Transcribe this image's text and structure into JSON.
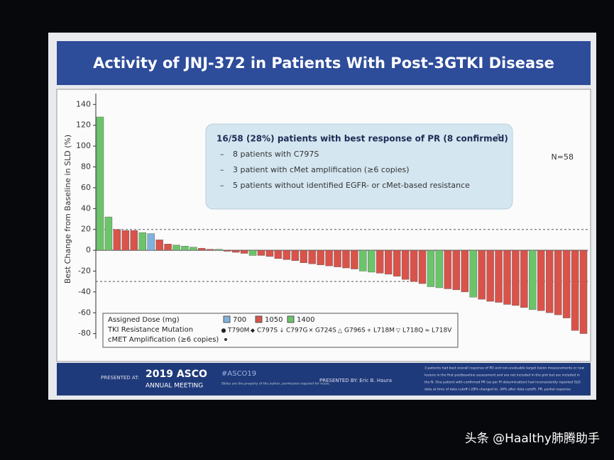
{
  "chart_data": {
    "type": "bar",
    "title": "Activity of JNJ-372 in Patients With Post-3GTKI Disease",
    "y_label": "Best Change from Baseline in SLD (%)",
    "ylim": [
      -85,
      145
    ],
    "yticks": [
      -80,
      -60,
      -40,
      -20,
      0,
      20,
      40,
      60,
      80,
      100,
      120,
      140
    ],
    "reference_lines": [
      20,
      -30
    ],
    "series": [
      {
        "name": "700",
        "color": "#7fb2dc",
        "values": [
          null,
          null,
          null,
          null,
          null,
          null,
          16,
          null,
          null,
          null,
          null,
          null,
          null,
          null,
          null,
          null,
          null,
          null,
          null,
          null,
          null,
          null,
          null,
          null,
          null,
          null,
          null,
          null,
          null,
          null,
          null,
          null,
          null,
          null,
          null,
          null,
          null,
          null,
          null,
          null,
          null,
          null,
          null,
          null,
          null,
          null,
          null,
          null,
          null,
          null,
          null,
          null,
          null,
          null,
          null,
          null,
          null,
          null
        ]
      },
      {
        "name": "1050",
        "color": "#d9534a",
        "values": [
          null,
          null,
          20,
          19,
          19,
          null,
          null,
          10,
          6,
          null,
          null,
          null,
          2,
          1,
          null,
          -1,
          -2,
          -3,
          null,
          -5,
          -6,
          -8,
          -9,
          -10,
          -12,
          -13,
          -14,
          -15,
          -16,
          -17,
          -18,
          null,
          null,
          -22,
          -23,
          -25,
          -28,
          -30,
          -32,
          null,
          null,
          -37,
          -38,
          -40,
          null,
          -47,
          -49,
          -50,
          -52,
          -53,
          -55,
          null,
          -58,
          -60,
          -62,
          -65,
          -77,
          -80
        ]
      },
      {
        "name": "1400",
        "color": "#6cc46a",
        "values": [
          128,
          32,
          null,
          null,
          null,
          17,
          null,
          null,
          null,
          5,
          4,
          3,
          null,
          null,
          1,
          null,
          null,
          null,
          -5,
          null,
          null,
          null,
          null,
          null,
          null,
          null,
          null,
          null,
          null,
          null,
          null,
          -20,
          -21,
          null,
          null,
          null,
          null,
          null,
          null,
          -35,
          -36,
          null,
          null,
          null,
          -45,
          null,
          null,
          null,
          null,
          null,
          null,
          -57,
          null,
          null,
          null,
          null,
          null,
          null
        ]
      }
    ],
    "n_label": "N=58",
    "callout": {
      "heading": "16/58 (28%) patients with best response of PR (8 confirmed)",
      "heading_sup": "a",
      "bullets": [
        "8 patients with C797S",
        "3 patient with cMet amplification (≥6 copies)",
        "5 patients without identified EGFR- or cMet-based resistance"
      ]
    },
    "legend": {
      "dose_title": "Assigned Dose (mg)",
      "mutation_title": "TKI Resistance Mutation",
      "amp_title": "cMET Amplification (≥6 copies)",
      "mutations": [
        "T790M",
        "C797S",
        "C797G",
        "G724S",
        "G796S",
        "L718M",
        "L718Q",
        "L718V"
      ]
    }
  },
  "footer": {
    "presented_at": "PRESENTED AT:",
    "meeting": "2019 ASCO",
    "meeting_sub": "ANNUAL MEETING",
    "hashtag": "#ASCO19",
    "rights": "Slides are the property of the author, permission required for reuse.",
    "presented_by": "PRESENTED BY: Eric B. Haura",
    "footnote": [
      "3 patients had best overall response of PD and non-evaluable target lesion measurements or new",
      "lesions in the first postbaseline assessment and are not included in the plot but are included in",
      "the N. One patient with confirmed PR (as per PI determination) had inconsistently reported SLD",
      "data at time of data cutoff (-28% changed to -34% after data cutoff). PR, partial response"
    ]
  },
  "watermark": "头条 @Haalthy肺腾助手"
}
